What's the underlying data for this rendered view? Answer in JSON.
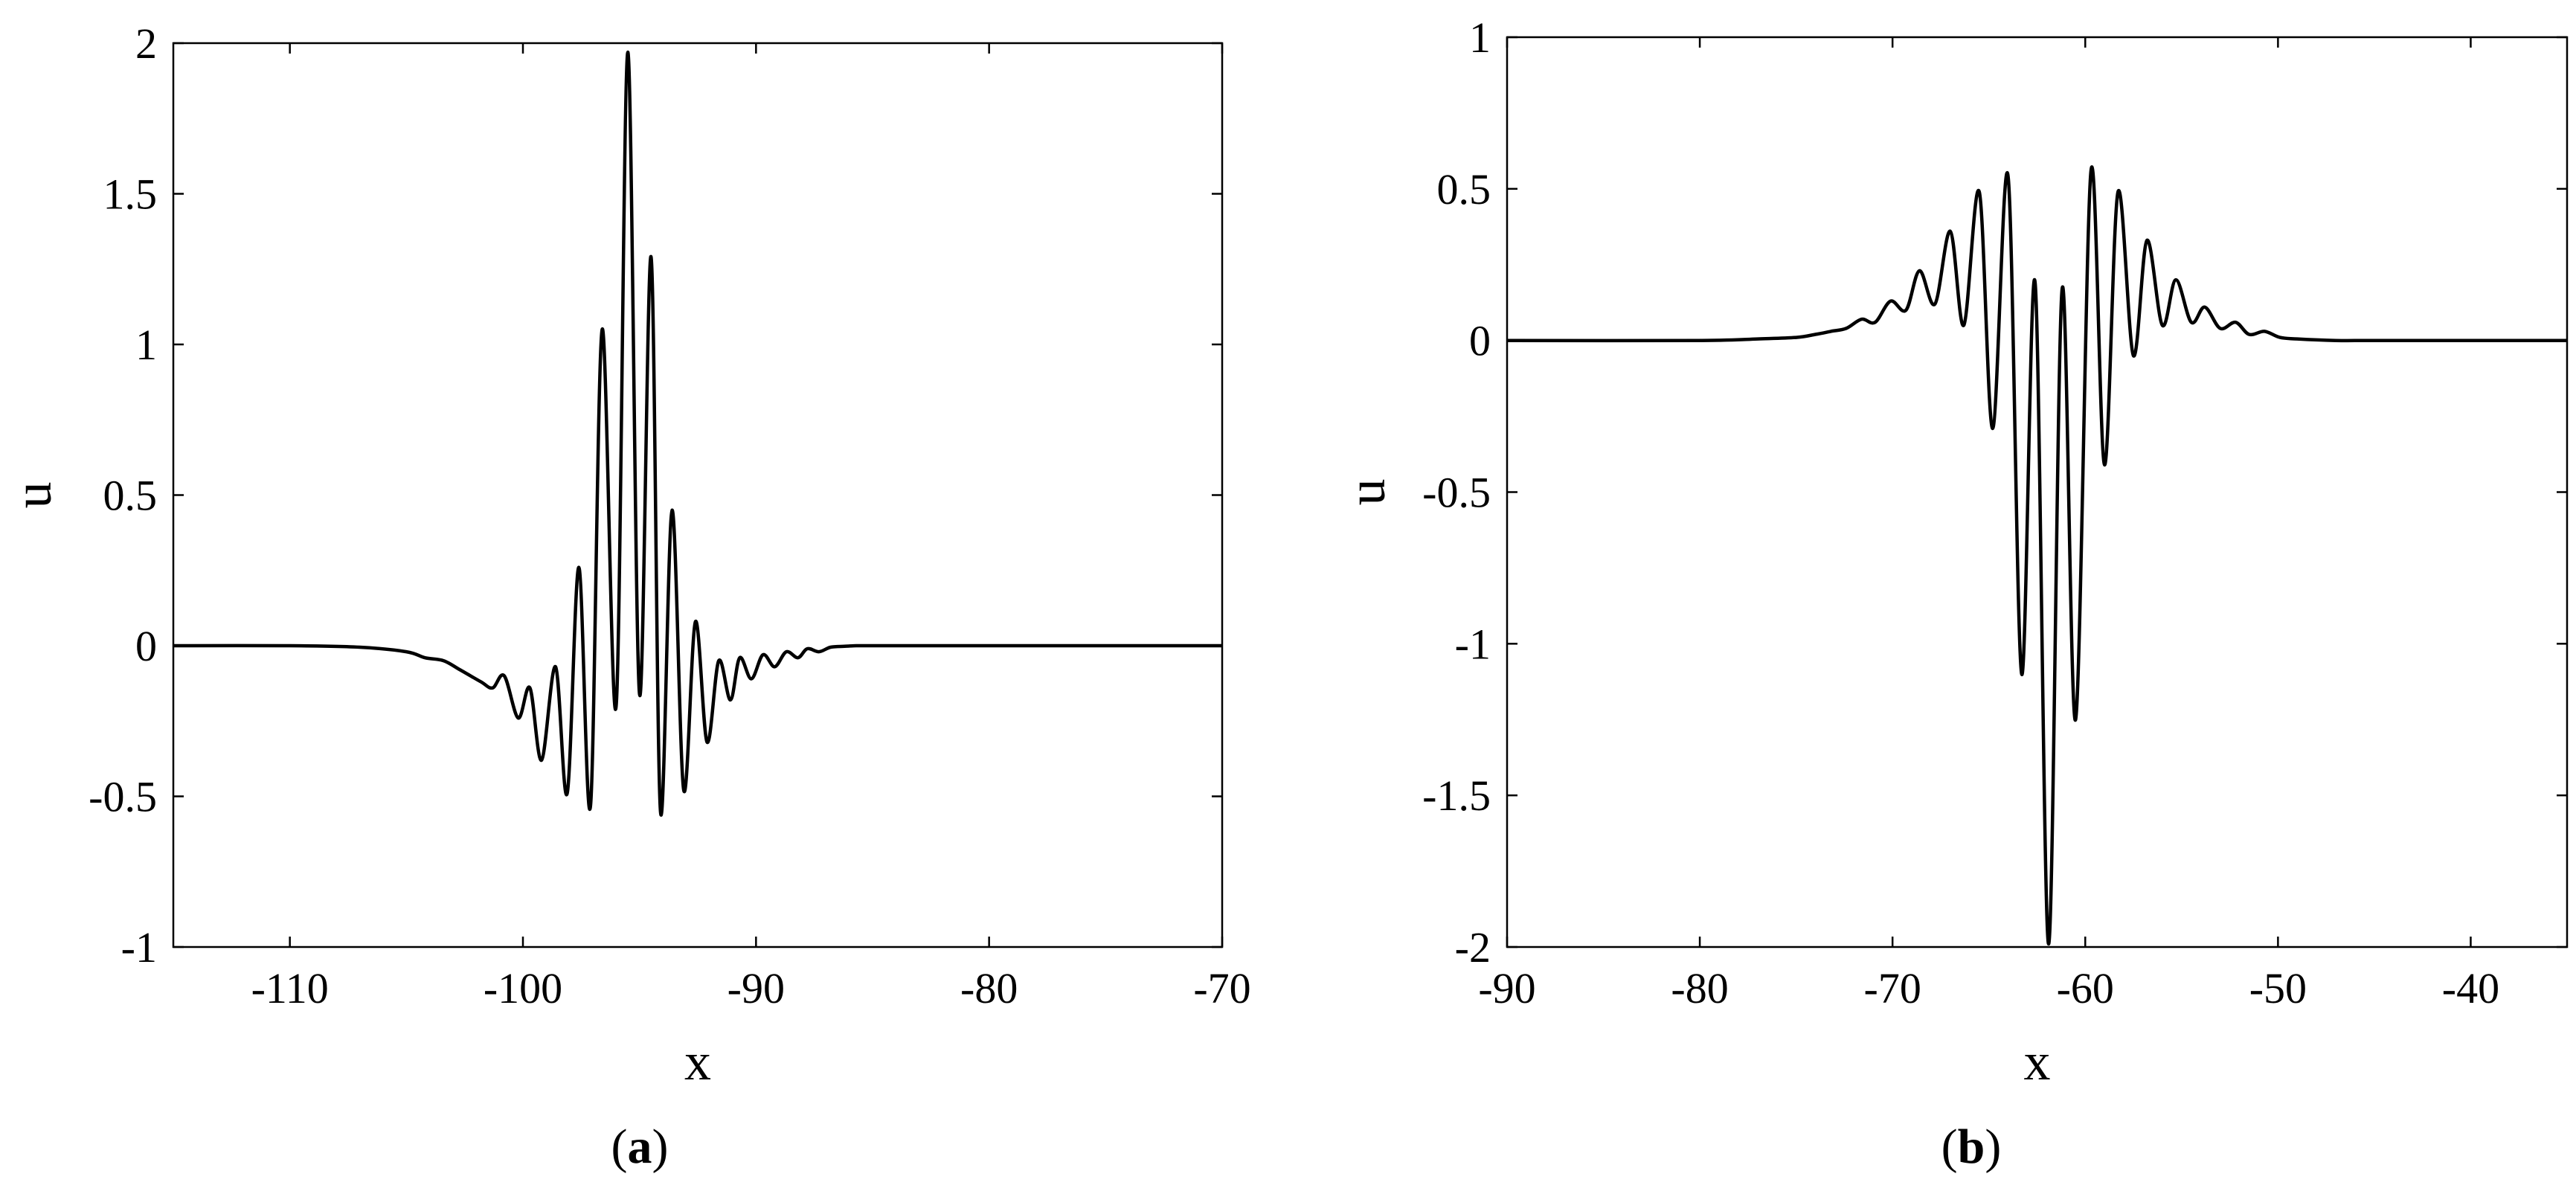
{
  "chart_data": [
    {
      "type": "line",
      "caption_letter": "a",
      "title": "",
      "xlabel": "x",
      "ylabel": "u",
      "xlim": [
        -115,
        -70
      ],
      "ylim": [
        -1,
        2
      ],
      "xticks": [
        -110,
        -100,
        -90,
        -80,
        -70
      ],
      "yticks": [
        -1,
        -0.5,
        0,
        0.5,
        1,
        1.5,
        2
      ],
      "grid": false,
      "line_color": "#000000",
      "series": [
        {
          "x": [
            -115,
            -110,
            -107,
            -105,
            -104.2,
            -103.4,
            -102.7,
            -101.8,
            -101.3,
            -100.8,
            -100.2,
            -99.7,
            -99.2,
            -98.6,
            -98.1,
            -97.6,
            -97.1,
            -96.6,
            -96.0,
            -95.5,
            -95.0,
            -94.5,
            -94.1,
            -93.6,
            -93.1,
            -92.6,
            -92.1,
            -91.6,
            -91.1,
            -90.7,
            -90.2,
            -89.7,
            -89.2,
            -88.7,
            -88.2,
            -87.8,
            -87.3,
            -86.8,
            -86.2,
            -85.7,
            -85.2,
            -84.6,
            -84.0,
            -83.4,
            -82.8,
            -82.2,
            -81.5,
            -80,
            -77,
            -70
          ],
          "y": [
            0,
            0,
            -0.005,
            -0.02,
            -0.04,
            -0.05,
            -0.08,
            -0.12,
            -0.14,
            -0.1,
            -0.24,
            -0.14,
            -0.38,
            -0.07,
            -0.49,
            0.26,
            -0.53,
            1.05,
            -0.2,
            1.97,
            -0.16,
            1.29,
            -0.55,
            0.45,
            -0.48,
            0.08,
            -0.32,
            -0.05,
            -0.18,
            -0.04,
            -0.11,
            -0.03,
            -0.07,
            -0.02,
            -0.04,
            -0.01,
            -0.02,
            -0.005,
            -0.002,
            0,
            0,
            0,
            0,
            0,
            0,
            0,
            0,
            0,
            0,
            0
          ]
        }
      ]
    },
    {
      "type": "line",
      "caption_letter": "b",
      "title": "",
      "xlabel": "x",
      "ylabel": "u",
      "xlim": [
        -90,
        -35
      ],
      "ylim": [
        -2,
        1
      ],
      "xticks": [
        -90,
        -80,
        -70,
        -60,
        -50,
        -40
      ],
      "yticks": [
        -2,
        -1.5,
        -1,
        -0.5,
        0,
        0.5,
        1
      ],
      "grid": false,
      "line_color": "#000000",
      "series": [
        {
          "x": [
            -90,
            -80,
            -77,
            -75,
            -74,
            -73.2,
            -72.4,
            -71.6,
            -70.9,
            -70.1,
            -69.3,
            -68.6,
            -67.8,
            -67.0,
            -66.3,
            -65.5,
            -64.8,
            -64.0,
            -63.3,
            -62.6,
            -61.9,
            -61.2,
            -60.5,
            -59.7,
            -59.0,
            -58.3,
            -57.5,
            -56.8,
            -56.0,
            -55.3,
            -54.5,
            -53.8,
            -53.0,
            -52.2,
            -51.5,
            -50.7,
            -49.9,
            -49,
            -47,
            -45,
            -40,
            -35
          ],
          "y": [
            0,
            0,
            0.005,
            0.01,
            0.02,
            0.03,
            0.04,
            0.07,
            0.06,
            0.13,
            0.1,
            0.23,
            0.12,
            0.36,
            0.05,
            0.49,
            -0.29,
            0.54,
            -1.1,
            0.19,
            -1.99,
            0.17,
            -1.25,
            0.56,
            -0.41,
            0.49,
            -0.05,
            0.33,
            0.05,
            0.2,
            0.06,
            0.11,
            0.04,
            0.06,
            0.02,
            0.03,
            0.01,
            0.005,
            0,
            0,
            0,
            0
          ]
        }
      ]
    }
  ]
}
